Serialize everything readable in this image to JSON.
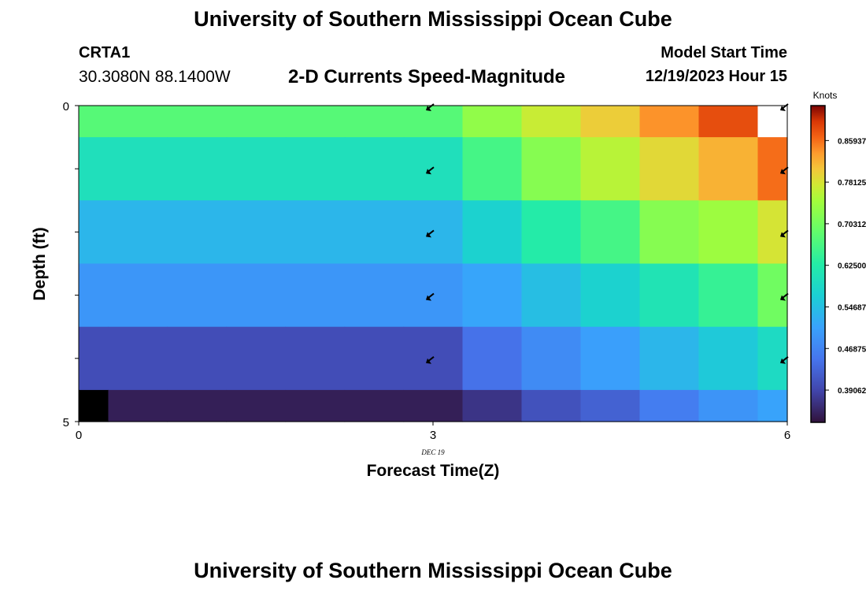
{
  "header": {
    "title": "University of Southern Mississippi Ocean Cube",
    "station": "CRTA1",
    "coordinates": "30.3080N  88.1400W",
    "subtitle": "2-D Currents Speed-Magnitude",
    "model_start_label": "Model Start Time",
    "model_start_time": "12/19/2023 Hour 15"
  },
  "footer": {
    "title": "University of Southern Mississippi Ocean Cube"
  },
  "colors": {
    "background": "#ffffff",
    "axis": "#000000",
    "arrow": "#000000"
  },
  "chart_data": {
    "type": "heatmap",
    "xlabel": "Forecast Time(Z)",
    "ylabel": "Depth (ft)",
    "date_label": "DEC 19",
    "x_ticks": [
      0,
      3,
      6
    ],
    "x_tick_labels": [
      "0",
      "3",
      "6"
    ],
    "y_ticks": [
      0,
      5
    ],
    "y_tick_labels": [
      "0",
      "5"
    ],
    "xlim": [
      0,
      6
    ],
    "ylim": [
      0,
      5
    ],
    "colorbar": {
      "title": "Knots",
      "min": 0.33,
      "max": 0.925,
      "tick_labels": [
        "0.85937",
        "0.78125",
        "0.70312",
        "0.62500",
        "0.54687",
        "0.46875",
        "0.39062"
      ],
      "tick_values": [
        0.85937,
        0.78125,
        0.70312,
        0.625,
        0.54687,
        0.46875,
        0.39062
      ]
    },
    "x_edges": [
      0,
      0.25,
      0.75,
      1.25,
      1.75,
      2.25,
      2.75,
      3.25,
      3.75,
      4.25,
      4.75,
      5.25,
      5.75,
      6.0
    ],
    "depth_edges": [
      0,
      0.5,
      1.5,
      2.5,
      3.5,
      4.5,
      5.0
    ],
    "cells": [
      [
        0.676,
        0.676,
        0.676,
        0.676,
        0.676,
        0.676,
        0.676,
        0.73,
        0.77,
        0.8,
        0.84,
        0.88,
        null
      ],
      [
        0.6,
        0.6,
        0.6,
        0.6,
        0.6,
        0.6,
        0.6,
        0.66,
        0.72,
        0.76,
        0.79,
        0.82,
        0.86
      ],
      [
        0.535,
        0.535,
        0.535,
        0.535,
        0.535,
        0.535,
        0.535,
        0.575,
        0.625,
        0.66,
        0.72,
        0.74,
        0.78
      ],
      [
        0.493,
        0.493,
        0.493,
        0.493,
        0.493,
        0.493,
        0.493,
        0.512,
        0.545,
        0.575,
        0.61,
        0.645,
        0.7
      ],
      [
        0.4,
        0.4,
        0.4,
        0.4,
        0.4,
        0.4,
        0.4,
        0.445,
        0.478,
        0.505,
        0.535,
        0.56,
        0.59
      ],
      [
        0.29,
        0.345,
        0.345,
        0.345,
        0.345,
        0.345,
        0.345,
        0.37,
        0.405,
        0.425,
        0.46,
        0.49,
        0.51
      ]
    ],
    "vectors": [
      {
        "x": 3,
        "depth": 0
      },
      {
        "x": 3,
        "depth": 1
      },
      {
        "x": 3,
        "depth": 2
      },
      {
        "x": 3,
        "depth": 3
      },
      {
        "x": 3,
        "depth": 4
      },
      {
        "x": 6,
        "depth": 0
      },
      {
        "x": 6,
        "depth": 1
      },
      {
        "x": 6,
        "depth": 2
      },
      {
        "x": 6,
        "depth": 3
      },
      {
        "x": 6,
        "depth": 4
      }
    ],
    "vector_direction": "southwest"
  }
}
